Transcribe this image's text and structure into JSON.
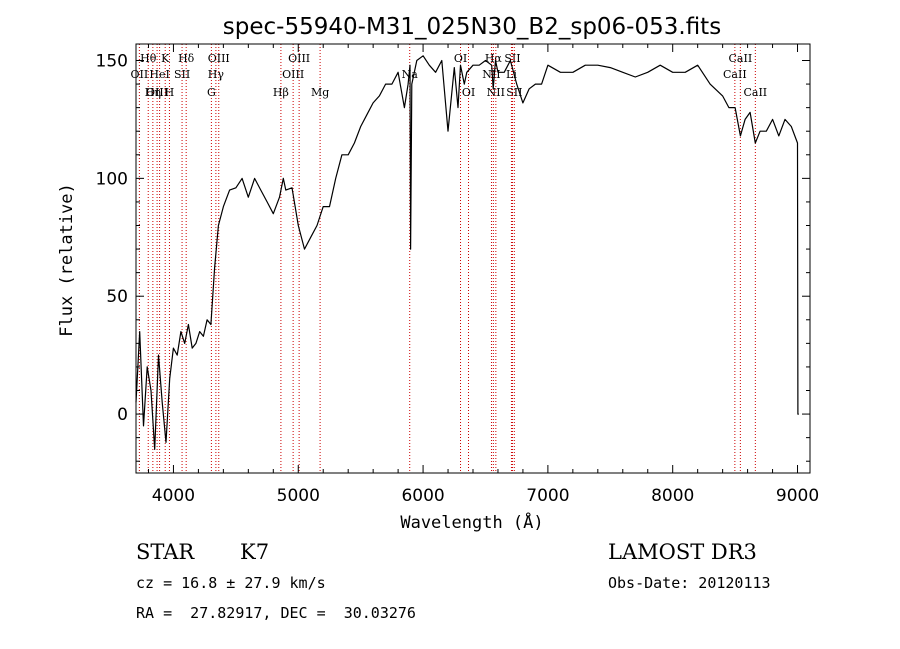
{
  "chart_data": {
    "type": "line",
    "title": "spec-55940-M31_025N30_B2_sp06-053.fits",
    "xlabel": "Wavelength (Å)",
    "ylabel": "Flux (relative)",
    "xlim": [
      3700,
      9100
    ],
    "ylim": [
      -25,
      157
    ],
    "x_ticks": [
      4000,
      5000,
      6000,
      7000,
      8000,
      9000
    ],
    "y_ticks": [
      0,
      50,
      100,
      150
    ],
    "series": [
      {
        "name": "flux",
        "x": [
          3700,
          3730,
          3760,
          3790,
          3820,
          3850,
          3880,
          3910,
          3940,
          3970,
          4000,
          4030,
          4060,
          4090,
          4120,
          4150,
          4180,
          4210,
          4240,
          4270,
          4300,
          4330,
          4360,
          4400,
          4450,
          4500,
          4550,
          4600,
          4650,
          4700,
          4750,
          4800,
          4850,
          4880,
          4900,
          4950,
          5000,
          5050,
          5100,
          5150,
          5200,
          5250,
          5300,
          5350,
          5400,
          5450,
          5500,
          5550,
          5600,
          5650,
          5700,
          5750,
          5800,
          5850,
          5880,
          5895,
          5900,
          5910,
          5950,
          6000,
          6050,
          6100,
          6150,
          6200,
          6250,
          6280,
          6300,
          6330,
          6350,
          6400,
          6450,
          6500,
          6550,
          6562,
          6580,
          6600,
          6650,
          6700,
          6750,
          6800,
          6850,
          6900,
          6950,
          7000,
          7100,
          7200,
          7300,
          7400,
          7500,
          7600,
          7700,
          7800,
          7900,
          8000,
          8100,
          8200,
          8300,
          8400,
          8450,
          8500,
          8542,
          8580,
          8620,
          8662,
          8700,
          8750,
          8800,
          8850,
          8900,
          8950,
          9000,
          9003,
          9010
        ],
        "values": [
          5,
          35,
          -5,
          20,
          10,
          -15,
          25,
          5,
          -12,
          15,
          28,
          25,
          35,
          30,
          38,
          28,
          30,
          35,
          33,
          40,
          38,
          62,
          80,
          88,
          95,
          96,
          100,
          92,
          100,
          95,
          90,
          85,
          92,
          100,
          95,
          96,
          80,
          70,
          75,
          80,
          88,
          88,
          100,
          110,
          110,
          115,
          122,
          127,
          132,
          135,
          140,
          140,
          145,
          130,
          140,
          148,
          70,
          140,
          150,
          152,
          148,
          145,
          150,
          120,
          147,
          130,
          148,
          140,
          145,
          148,
          148,
          150,
          148,
          138,
          150,
          145,
          145,
          150,
          140,
          132,
          138,
          140,
          140,
          148,
          145,
          145,
          148,
          148,
          147,
          145,
          143,
          145,
          148,
          145,
          145,
          148,
          140,
          135,
          130,
          130,
          118,
          125,
          128,
          115,
          120,
          120,
          125,
          118,
          125,
          122,
          115,
          0,
          0
        ]
      }
    ],
    "spectral_lines": [
      {
        "label": "Hθ",
        "x": 3798,
        "row": 1
      },
      {
        "label": "OII",
        "x": 3727,
        "row": 2
      },
      {
        "label": "OIII",
        "x": 3869,
        "row": 3
      },
      {
        "label": "K",
        "x": 3934,
        "row": 1
      },
      {
        "label": "HeI",
        "x": 3889,
        "row": 2
      },
      {
        "label": "Hη",
        "x": 3835,
        "row": 3
      },
      {
        "label": "Hδ",
        "x": 4102,
        "row": 1
      },
      {
        "label": "SII",
        "x": 4069,
        "row": 2
      },
      {
        "label": "H",
        "x": 3968,
        "row": 3
      },
      {
        "label": "OIII",
        "x": 4363,
        "row": 1
      },
      {
        "label": "Hγ",
        "x": 4340,
        "row": 2
      },
      {
        "label": "G",
        "x": 4304,
        "row": 3
      },
      {
        "label": "OIII",
        "x": 5007,
        "row": 1
      },
      {
        "label": "OIII",
        "x": 4959,
        "row": 2
      },
      {
        "label": "Hβ",
        "x": 4861,
        "row": 3
      },
      {
        "label": "Mg",
        "x": 5175,
        "row": 3
      },
      {
        "label": "Na",
        "x": 5893,
        "row": 2
      },
      {
        "label": "OI",
        "x": 6300,
        "row": 1
      },
      {
        "label": "OI",
        "x": 6364,
        "row": 3
      },
      {
        "label": "Hα",
        "x": 6563,
        "row": 1
      },
      {
        "label": "NII",
        "x": 6548,
        "row": 2
      },
      {
        "label": "NII",
        "x": 6583,
        "row": 3
      },
      {
        "label": "SII",
        "x": 6716,
        "row": 1
      },
      {
        "label": "SII",
        "x": 6731,
        "row": 3
      },
      {
        "label": "Li",
        "x": 6708,
        "row": 2
      },
      {
        "label": "CaII",
        "x": 8542,
        "row": 1
      },
      {
        "label": "CaII",
        "x": 8498,
        "row": 2
      },
      {
        "label": "CaII",
        "x": 8662,
        "row": 3
      }
    ]
  },
  "footer": {
    "object_class": "STAR",
    "subclass": "K7",
    "survey": "LAMOST DR3",
    "redshift": "cz = 16.8 ± 27.9 km/s",
    "obs_date": "Obs-Date: 20120113",
    "coords": "RA =  27.82917, DEC =  30.03276"
  },
  "colors": {
    "line": "#000000",
    "marker": "#cc0000",
    "background": "#ffffff"
  }
}
